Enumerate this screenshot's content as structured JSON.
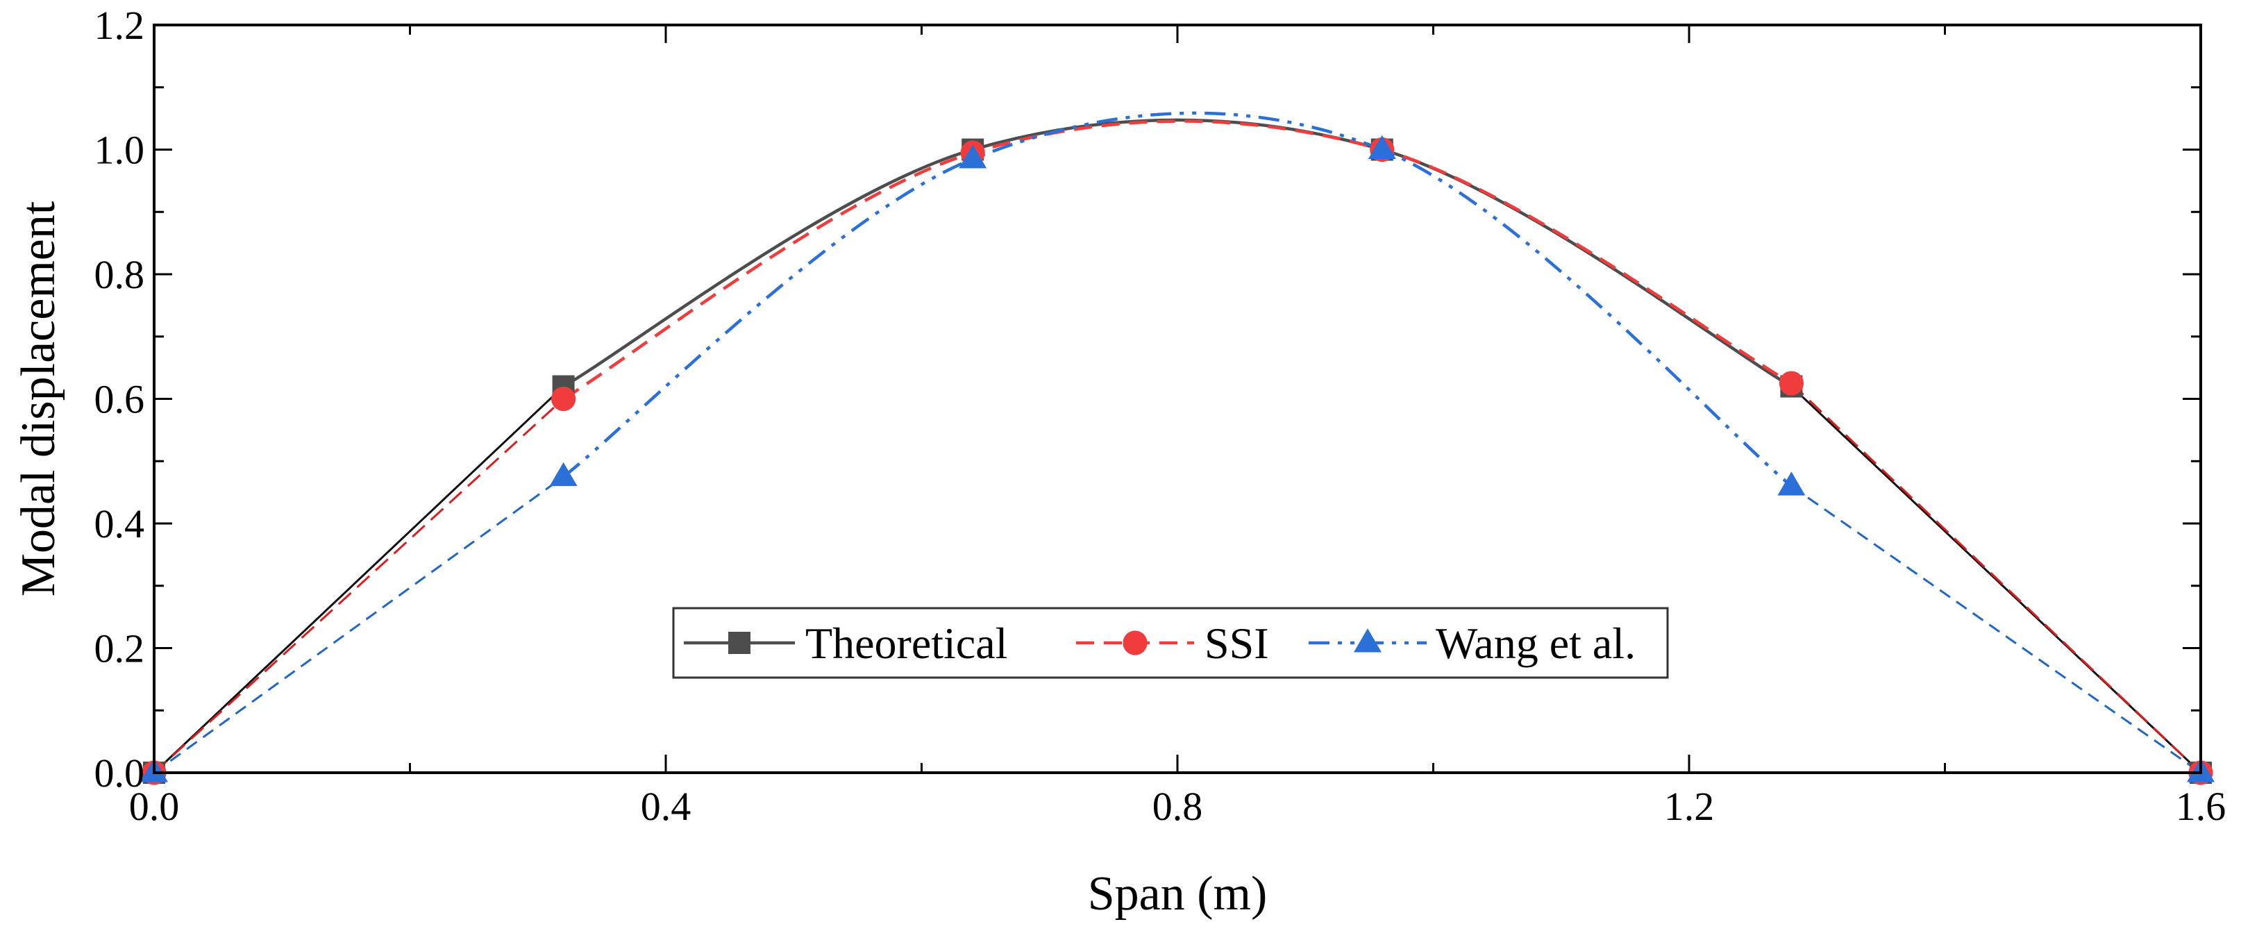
{
  "chart_data": {
    "type": "line",
    "title": "",
    "xlabel": "Span (m)",
    "ylabel": "Modal displacement",
    "xlim": [
      0,
      1.6
    ],
    "ylim": [
      0,
      1.2
    ],
    "x_ticks": [
      "0.0",
      "0.4",
      "0.8",
      "1.2",
      "1.6"
    ],
    "y_ticks": [
      "0.0",
      "0.2",
      "0.4",
      "0.6",
      "0.8",
      "1.0",
      "1.2"
    ],
    "grid": false,
    "legend": {
      "placement": "bottom-center",
      "orientation": "horizontal"
    },
    "series": [
      {
        "name": "Theoretical",
        "color": "#4d4d4d",
        "marker": "square",
        "line_style": "solid",
        "x": [
          0.0,
          0.32,
          0.64,
          0.96,
          1.28,
          1.6
        ],
        "y": [
          0.0,
          0.62,
          1.0,
          1.0,
          0.62,
          0.0
        ]
      },
      {
        "name": "SSI",
        "color": "#f03c3c",
        "marker": "circle",
        "line_style": "dashed",
        "x": [
          0.0,
          0.32,
          0.64,
          0.96,
          1.28,
          1.6
        ],
        "y": [
          0.0,
          0.6,
          0.995,
          1.0,
          0.625,
          0.0
        ]
      },
      {
        "name": "Wang et al.",
        "color": "#2a70d8",
        "marker": "triangle",
        "line_style": "dash-dot-dot",
        "x": [
          0.0,
          0.32,
          0.64,
          0.96,
          1.28,
          1.6
        ],
        "y": [
          0.0,
          0.475,
          0.985,
          1.0,
          0.46,
          0.0
        ]
      }
    ]
  }
}
